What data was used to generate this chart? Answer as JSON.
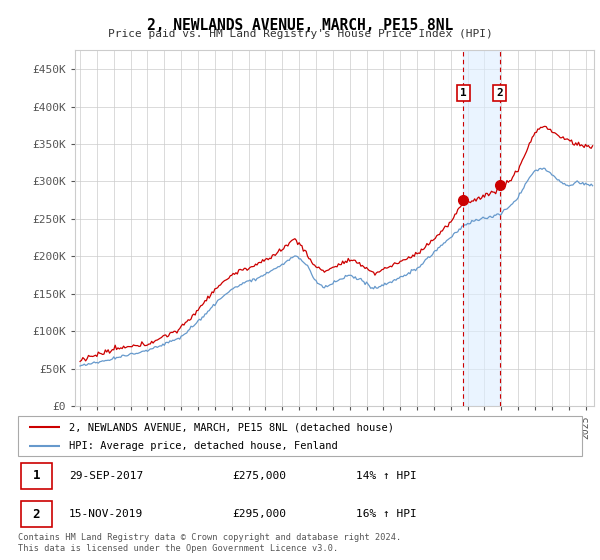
{
  "title": "2, NEWLANDS AVENUE, MARCH, PE15 8NL",
  "subtitle": "Price paid vs. HM Land Registry's House Price Index (HPI)",
  "ylabel_ticks": [
    "£0",
    "£50K",
    "£100K",
    "£150K",
    "£200K",
    "£250K",
    "£300K",
    "£350K",
    "£400K",
    "£450K"
  ],
  "ytick_values": [
    0,
    50000,
    100000,
    150000,
    200000,
    250000,
    300000,
    350000,
    400000,
    450000
  ],
  "ylim": [
    0,
    475000
  ],
  "xlim_start": 1994.7,
  "xlim_end": 2025.5,
  "red_color": "#cc0000",
  "blue_color": "#6699cc",
  "shade_color": "#ddeeff",
  "transaction1": {
    "date_x": 2017.75,
    "price": 275000,
    "label": "1"
  },
  "transaction2": {
    "date_x": 2019.9,
    "price": 295000,
    "label": "2"
  },
  "legend_line1": "2, NEWLANDS AVENUE, MARCH, PE15 8NL (detached house)",
  "legend_line2": "HPI: Average price, detached house, Fenland",
  "footnote": "Contains HM Land Registry data © Crown copyright and database right 2024.\nThis data is licensed under the Open Government Licence v3.0.",
  "background_color": "#ffffff",
  "grid_color": "#cccccc"
}
